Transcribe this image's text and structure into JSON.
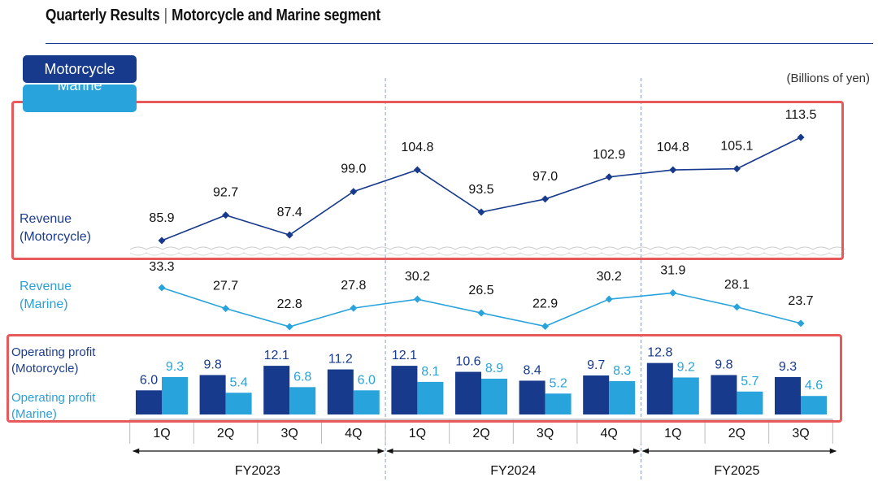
{
  "header": {
    "title_left": "Quarterly Results",
    "separator": "|",
    "title_right": "Motorcycle and Marine segment"
  },
  "legend": {
    "motorcycle": "Motorcycle",
    "marine": "Marine"
  },
  "unit": "(Billions of yen)",
  "row_labels": {
    "revenue_motorcycle_1": "Revenue",
    "revenue_motorcycle_2": "(Motorcycle)",
    "revenue_marine_1": "Revenue",
    "revenue_marine_2": "(Marine)",
    "op_motorcycle_1": "Operating profit",
    "op_motorcycle_2": "(Motorcycle)",
    "op_marine_1": "Operating profit",
    "op_marine_2": "(Marine)"
  },
  "colors": {
    "motorcycle": "#173a8c",
    "marine": "#29a3dc",
    "highlight_box": "#e8595b",
    "divider": "#8a9cc8"
  },
  "chart_data": [
    {
      "type": "line",
      "name": "Revenue (Motorcycle)",
      "categories": [
        "1Q",
        "2Q",
        "3Q",
        "4Q",
        "1Q",
        "2Q",
        "3Q",
        "4Q",
        "1Q",
        "2Q",
        "3Q"
      ],
      "values": [
        85.9,
        92.7,
        87.4,
        99.0,
        104.8,
        93.5,
        97.0,
        102.9,
        104.8,
        105.1,
        113.5
      ],
      "labels": [
        "85.9",
        "92.7",
        "87.4",
        "99.0",
        "104.8",
        "93.5",
        "97.0",
        "102.9",
        "104.8",
        "105.1",
        "113.5"
      ]
    },
    {
      "type": "line",
      "name": "Revenue (Marine)",
      "categories": [
        "1Q",
        "2Q",
        "3Q",
        "4Q",
        "1Q",
        "2Q",
        "3Q",
        "4Q",
        "1Q",
        "2Q",
        "3Q"
      ],
      "values": [
        33.3,
        27.7,
        22.8,
        27.8,
        30.2,
        26.5,
        22.9,
        30.2,
        31.9,
        28.1,
        23.7
      ],
      "labels": [
        "33.3",
        "27.7",
        "22.8",
        "27.8",
        "30.2",
        "26.5",
        "22.9",
        "30.2",
        "31.9",
        "28.1",
        "23.7"
      ]
    },
    {
      "type": "bar",
      "categories": [
        "1Q",
        "2Q",
        "3Q",
        "4Q",
        "1Q",
        "2Q",
        "3Q",
        "4Q",
        "1Q",
        "2Q",
        "3Q"
      ],
      "series": [
        {
          "name": "Motorcycle",
          "values": [
            6.0,
            9.8,
            12.1,
            11.2,
            12.1,
            10.6,
            8.4,
            9.7,
            12.8,
            9.8,
            9.3
          ],
          "labels": [
            "6.0",
            "9.8",
            "12.1",
            "11.2",
            "12.1",
            "10.6",
            "8.4",
            "9.7",
            "12.8",
            "9.8",
            "9.3"
          ]
        },
        {
          "name": "Marine",
          "values": [
            9.3,
            5.4,
            6.8,
            6.0,
            8.1,
            8.9,
            5.2,
            8.3,
            9.2,
            5.7,
            4.6
          ],
          "labels": [
            "9.3",
            "5.4",
            "6.8",
            "6.0",
            "8.1",
            "8.9",
            "5.2",
            "8.3",
            "9.2",
            "5.7",
            "4.6"
          ]
        }
      ]
    }
  ],
  "x_axis": {
    "quarters": [
      "1Q",
      "2Q",
      "3Q",
      "4Q",
      "1Q",
      "2Q",
      "3Q",
      "4Q",
      "1Q",
      "2Q",
      "3Q"
    ],
    "fiscal_years": [
      {
        "label": "FY2023",
        "start": 0,
        "end": 3
      },
      {
        "label": "FY2024",
        "start": 4,
        "end": 7
      },
      {
        "label": "FY2025",
        "start": 8,
        "end": 10
      }
    ]
  }
}
